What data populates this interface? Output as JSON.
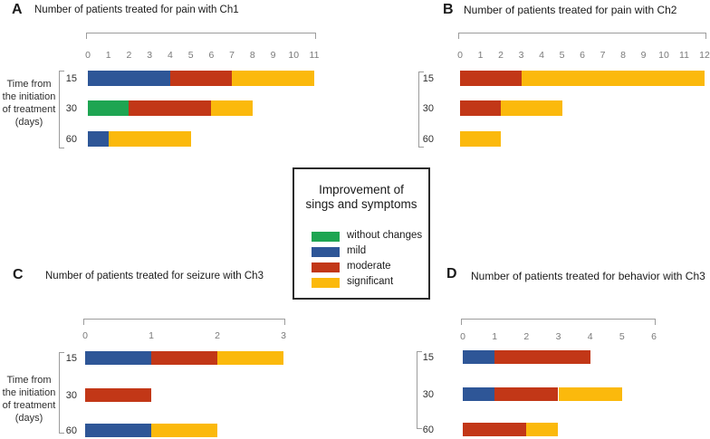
{
  "figure": {
    "background": "#ffffff"
  },
  "colors": {
    "without_changes": "#1ea552",
    "mild": "#2e5697",
    "moderate": "#c23717",
    "significant": "#fbb90c",
    "bracket": "#9c9c9c",
    "tick_text": "#7a7a7a",
    "title_text": "#1a1a1a"
  },
  "y_axis_label_lines": [
    "Time from",
    "the initiation",
    "of treatment",
    "(days)"
  ],
  "legend": {
    "title_lines": [
      "Improvement of",
      "sings and symptoms"
    ],
    "items": [
      {
        "label": "without changes",
        "color_key": "without_changes"
      },
      {
        "label": "mild",
        "color_key": "mild"
      },
      {
        "label": "moderate",
        "color_key": "moderate"
      },
      {
        "label": "significant",
        "color_key": "significant"
      }
    ]
  },
  "chart_data": [
    {
      "panel": "A",
      "type": "bar",
      "orientation": "horizontal",
      "title": "Number of patients treated for pain with Ch1",
      "ylabel": "Time from the initiation of treatment (days)",
      "categories": [
        "15",
        "30",
        "60"
      ],
      "xlim": [
        0,
        11
      ],
      "ticks": [
        0,
        1,
        2,
        3,
        4,
        5,
        6,
        7,
        8,
        9,
        10,
        11
      ],
      "grid": false,
      "has_time_axis_label": true,
      "series": [
        {
          "name": "without changes",
          "key": "without_changes",
          "values": [
            0,
            2,
            0
          ]
        },
        {
          "name": "mild",
          "key": "mild",
          "values": [
            4,
            0,
            1
          ]
        },
        {
          "name": "moderate",
          "key": "moderate",
          "values": [
            3,
            4,
            0
          ]
        },
        {
          "name": "significant",
          "key": "significant",
          "values": [
            4,
            2,
            4
          ]
        }
      ]
    },
    {
      "panel": "B",
      "type": "bar",
      "orientation": "horizontal",
      "title": "Number of patients treated for pain with Ch2",
      "ylabel": "",
      "categories": [
        "15",
        "30",
        "60"
      ],
      "xlim": [
        0,
        12
      ],
      "ticks": [
        0,
        1,
        2,
        3,
        4,
        5,
        6,
        7,
        8,
        9,
        10,
        11,
        12
      ],
      "grid": false,
      "has_time_axis_label": false,
      "series": [
        {
          "name": "without changes",
          "key": "without_changes",
          "values": [
            0,
            0,
            0
          ]
        },
        {
          "name": "mild",
          "key": "mild",
          "values": [
            0,
            0,
            0
          ]
        },
        {
          "name": "moderate",
          "key": "moderate",
          "values": [
            3,
            2,
            0
          ]
        },
        {
          "name": "significant",
          "key": "significant",
          "values": [
            9,
            3,
            2
          ]
        }
      ]
    },
    {
      "panel": "C",
      "type": "bar",
      "orientation": "horizontal",
      "title": "Number of patients treated for seizure with Ch3",
      "ylabel": "Time from the initiation of treatment (days)",
      "categories": [
        "15",
        "30",
        "60"
      ],
      "xlim": [
        0,
        3
      ],
      "ticks": [
        0,
        1,
        2,
        3
      ],
      "grid": false,
      "has_time_axis_label": true,
      "series": [
        {
          "name": "without changes",
          "key": "without_changes",
          "values": [
            0,
            0,
            0
          ]
        },
        {
          "name": "mild",
          "key": "mild",
          "values": [
            1,
            0,
            1
          ]
        },
        {
          "name": "moderate",
          "key": "moderate",
          "values": [
            1,
            1,
            0
          ]
        },
        {
          "name": "significant",
          "key": "significant",
          "values": [
            1,
            0,
            1
          ]
        }
      ]
    },
    {
      "panel": "D",
      "type": "bar",
      "orientation": "horizontal",
      "title": "Number of patients treated for behavior with Ch3",
      "ylabel": "",
      "categories": [
        "15",
        "30",
        "60"
      ],
      "xlim": [
        0,
        6
      ],
      "ticks": [
        0,
        1,
        2,
        3,
        4,
        5,
        6
      ],
      "grid": false,
      "has_time_axis_label": false,
      "series": [
        {
          "name": "without changes",
          "key": "without_changes",
          "values": [
            0,
            0,
            0
          ]
        },
        {
          "name": "mild",
          "key": "mild",
          "values": [
            1,
            1,
            0
          ]
        },
        {
          "name": "moderate",
          "key": "moderate",
          "values": [
            3,
            2,
            2
          ]
        },
        {
          "name": "significant",
          "key": "significant",
          "values": [
            0,
            2,
            1
          ]
        }
      ]
    }
  ]
}
